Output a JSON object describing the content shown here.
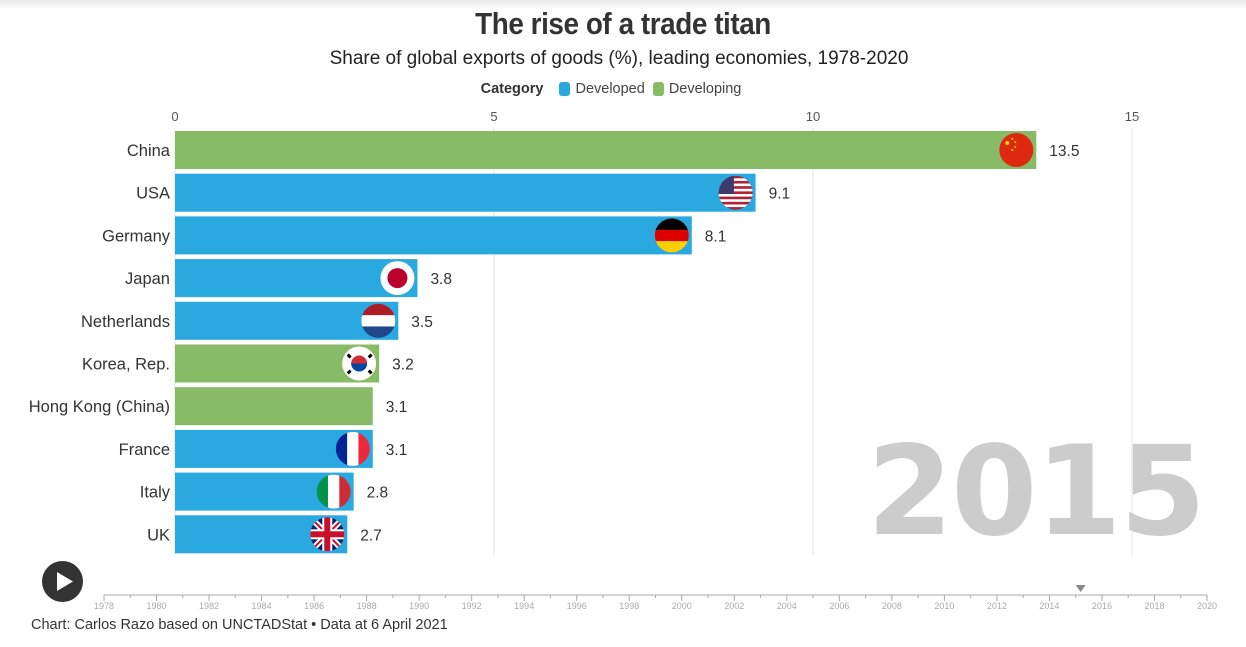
{
  "header": {
    "title": "The rise of a trade titan",
    "subtitle": "Share of global exports of goods (%), leading economies, 1978-2020"
  },
  "legend": {
    "title": "Category",
    "items": [
      {
        "label": "Developed",
        "color": "#29a9e0"
      },
      {
        "label": "Developing",
        "color": "#88bb66"
      }
    ]
  },
  "chart_data": {
    "type": "bar",
    "orientation": "horizontal",
    "title": "The rise of a trade titan",
    "subtitle": "Share of global exports of goods (%), leading economies, 1978-2020",
    "current_year": "2015",
    "xlabel": "",
    "ylabel": "",
    "xlim": [
      0,
      15
    ],
    "xticks": [
      "0",
      "5",
      "10",
      "15"
    ],
    "xtick_values": [
      0,
      5,
      10,
      15
    ],
    "grid": true,
    "legend_position": "top-center",
    "categories": [
      "China",
      "USA",
      "Germany",
      "Japan",
      "Netherlands",
      "Korea, Rep.",
      "Hong Kong (China)",
      "France",
      "Italy",
      "UK"
    ],
    "values": [
      13.5,
      9.1,
      8.1,
      3.8,
      3.5,
      3.2,
      3.1,
      3.1,
      2.8,
      2.7
    ],
    "value_labels": [
      "13.5",
      "9.1",
      "8.1",
      "3.8",
      "3.5",
      "3.2",
      "3.1",
      "3.1",
      "2.8",
      "2.7"
    ],
    "groups": [
      "Developing",
      "Developed",
      "Developed",
      "Developed",
      "Developed",
      "Developing",
      "Developing",
      "Developed",
      "Developed",
      "Developed"
    ],
    "flags": [
      "china-flag",
      "usa-flag",
      "germany-flag",
      "japan-flag",
      "netherlands-flag",
      "korea-flag",
      null,
      "france-flag",
      "italy-flag",
      "uk-flag"
    ],
    "group_colors": {
      "Developed": "#29a9e0",
      "Developing": "#88bb66"
    }
  },
  "timeline": {
    "play_icon": "play-icon",
    "start_year": 1978,
    "end_year": 2020,
    "current_year": 2015,
    "tick_labels": [
      "1978",
      "1980",
      "1982",
      "1984",
      "1986",
      "1988",
      "1990",
      "1992",
      "1994",
      "1996",
      "1998",
      "2000",
      "2002",
      "2004",
      "2006",
      "2008",
      "2010",
      "2012",
      "2014",
      "2016",
      "2018",
      "2020"
    ]
  },
  "footer": {
    "credit": "Chart: Carlos Razo based on UNCTADStat • Data at 6 April 2021"
  }
}
